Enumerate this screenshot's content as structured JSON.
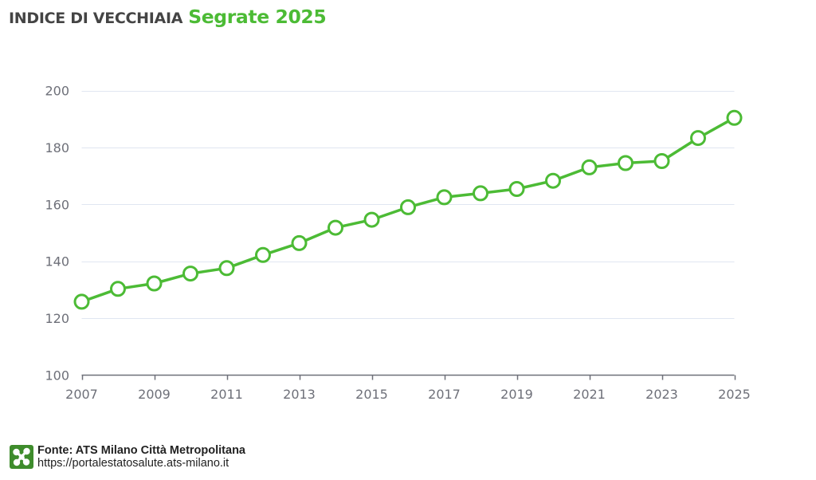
{
  "title": {
    "main": "INDICE DI VECCHIAIA",
    "sub": "Segrate 2025",
    "sub_color": "#4cbb35",
    "main_color": "#444444"
  },
  "footer": {
    "source": "Fonte: ATS Milano Città Metropolitana",
    "url": "https://portalestatosalute.ats-milano.it",
    "logo_icon": "lombardy-rose-icon",
    "logo_color": "#3e8c2c"
  },
  "colors": {
    "series": "#4cbb35",
    "grid": "#e0e6f1",
    "axis": "#6e7079"
  },
  "chart_data": {
    "type": "line",
    "title": "INDICE DI VECCHIAIA Segrate 2025",
    "xlabel": "",
    "ylabel": "",
    "x": [
      2007,
      2008,
      2009,
      2010,
      2011,
      2012,
      2013,
      2014,
      2015,
      2016,
      2017,
      2018,
      2019,
      2020,
      2021,
      2022,
      2023,
      2024,
      2025
    ],
    "series": [
      {
        "name": "Indice di vecchiaia",
        "values": [
          125.8,
          130.3,
          132.2,
          135.7,
          137.6,
          142.2,
          146.4,
          151.8,
          154.6,
          159.0,
          162.5,
          163.9,
          165.4,
          168.3,
          173.0,
          174.5,
          175.2,
          183.3,
          190.4
        ]
      }
    ],
    "ylim": [
      100,
      200
    ],
    "yticks": [
      100,
      120,
      140,
      160,
      180,
      200
    ],
    "xticks": [
      2007,
      2009,
      2011,
      2013,
      2015,
      2017,
      2019,
      2021,
      2023,
      2025
    ],
    "xlim": [
      2007,
      2025
    ],
    "grid": true,
    "legend": "none",
    "markers": "hollow-circle"
  }
}
